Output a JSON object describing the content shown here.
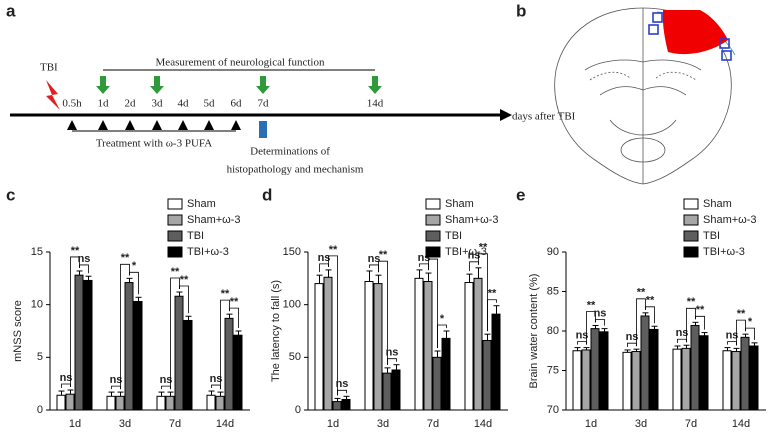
{
  "panel_labels": [
    "a",
    "b",
    "c",
    "d",
    "e"
  ],
  "timeline": {
    "event": "TBI",
    "time_labels": [
      "0.5h",
      "1d",
      "2d",
      "3d",
      "4d",
      "5d",
      "6d",
      "7d",
      "14d"
    ],
    "axis_label": "days after TBI",
    "measurement_label": "Measurement of neurological function",
    "treatment_label": "Treatment with ω-3 PUFA",
    "determination_label": [
      "Determinations of",
      "histopathology and mechanism"
    ]
  },
  "chart_data": [
    {
      "type": "bar",
      "ylabel": "mNSS score",
      "categories": [
        "1d",
        "3d",
        "7d",
        "14d"
      ],
      "ylim": [
        0,
        15
      ],
      "yticks": [
        0,
        5,
        10,
        15
      ],
      "legend": "upper right",
      "series": [
        {
          "name": "Sham",
          "color": "#ffffff",
          "values": [
            1.4,
            1.3,
            1.3,
            1.4
          ],
          "errors": [
            0.4,
            0.4,
            0.4,
            0.4
          ]
        },
        {
          "name": "Sham+ω-3",
          "color": "#a6a6a6",
          "values": [
            1.5,
            1.3,
            1.3,
            1.3
          ],
          "errors": [
            0.4,
            0.4,
            0.4,
            0.4
          ]
        },
        {
          "name": "TBI",
          "color": "#5e5e5e",
          "values": [
            12.8,
            12.1,
            10.8,
            8.7
          ],
          "errors": [
            0.4,
            0.4,
            0.4,
            0.4
          ]
        },
        {
          "name": "TBI+ω-3",
          "color": "#000000",
          "values": [
            12.3,
            10.3,
            8.5,
            7.1
          ],
          "errors": [
            0.4,
            0.4,
            0.4,
            0.4
          ]
        }
      ],
      "significance": [
        [
          "ns",
          "**",
          "ns"
        ],
        [
          "ns",
          "**",
          "*"
        ],
        [
          "ns",
          "**",
          "**"
        ],
        [
          "ns",
          "**",
          "**"
        ]
      ]
    },
    {
      "type": "bar",
      "ylabel": "The latency to fall (s)",
      "categories": [
        "1d",
        "3d",
        "7d",
        "14d"
      ],
      "ylim": [
        0,
        150
      ],
      "yticks": [
        0,
        50,
        100,
        150
      ],
      "legend": "upper right",
      "series": [
        {
          "name": "Sham",
          "color": "#ffffff",
          "values": [
            120,
            122,
            125,
            121
          ],
          "errors": [
            8,
            10,
            8,
            8
          ]
        },
        {
          "name": "Sham+ω-3",
          "color": "#a6a6a6",
          "values": [
            126,
            120,
            122,
            125
          ],
          "errors": [
            7,
            8,
            8,
            10
          ]
        },
        {
          "name": "TBI",
          "color": "#5e5e5e",
          "values": [
            8,
            35,
            50,
            66
          ],
          "errors": [
            3,
            5,
            6,
            6
          ]
        },
        {
          "name": "TBI+ω-3",
          "color": "#000000",
          "values": [
            10,
            38,
            68,
            91
          ],
          "errors": [
            3,
            5,
            7,
            8
          ]
        }
      ],
      "significance": [
        [
          "ns",
          "**",
          "ns"
        ],
        [
          "ns",
          "**",
          "ns"
        ],
        [
          "ns",
          "**",
          "*"
        ],
        [
          "ns",
          "**",
          "**"
        ]
      ]
    },
    {
      "type": "bar",
      "ylabel": "Brain water content (%)",
      "categories": [
        "1d",
        "3d",
        "7d",
        "14d"
      ],
      "ylim": [
        70,
        90
      ],
      "yticks": [
        70,
        75,
        80,
        85,
        90
      ],
      "legend": "upper right",
      "series": [
        {
          "name": "Sham",
          "color": "#ffffff",
          "values": [
            77.5,
            77.3,
            77.7,
            77.5
          ],
          "errors": [
            0.4,
            0.3,
            0.4,
            0.4
          ]
        },
        {
          "name": "Sham+ω-3",
          "color": "#a6a6a6",
          "values": [
            77.6,
            77.4,
            77.8,
            77.4
          ],
          "errors": [
            0.3,
            0.3,
            0.4,
            0.4
          ]
        },
        {
          "name": "TBI",
          "color": "#5e5e5e",
          "values": [
            80.3,
            81.9,
            80.7,
            79.2
          ],
          "errors": [
            0.4,
            0.4,
            0.4,
            0.4
          ]
        },
        {
          "name": "TBI+ω-3",
          "color": "#000000",
          "values": [
            79.9,
            80.2,
            79.4,
            78.1
          ],
          "errors": [
            0.4,
            0.4,
            0.4,
            0.4
          ]
        }
      ],
      "significance": [
        [
          "ns",
          "**",
          "ns"
        ],
        [
          "ns",
          "**",
          "**"
        ],
        [
          "ns",
          "**",
          "**"
        ],
        [
          "ns",
          "**",
          "*"
        ]
      ]
    }
  ]
}
